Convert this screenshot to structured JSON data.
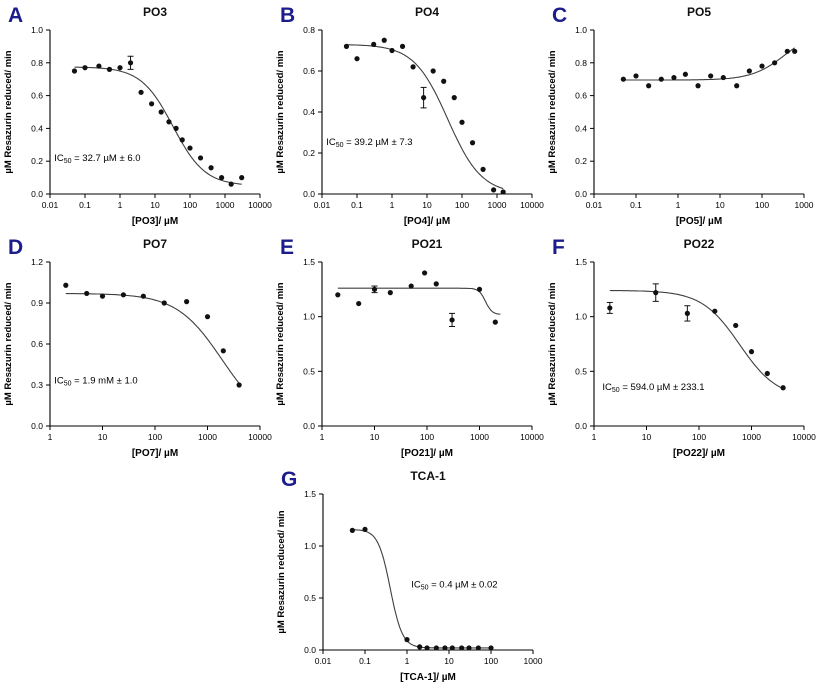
{
  "colors": {
    "background": "#ffffff",
    "panel_letter": "#1c1c8c",
    "title": "#111111",
    "axis": "#000000",
    "point": "#111111",
    "curve": "#3f3f3f"
  },
  "chart_data": [
    {
      "type": "scatter",
      "panel_letter": "A",
      "title": "PO3",
      "xlabel": "[PO3]/ µM",
      "ylabel": "µM Resazurin reduced/ min",
      "xscale": "log",
      "xlim": [
        0.01,
        10000
      ],
      "ylim": [
        0,
        1.0
      ],
      "xticks": [
        0.01,
        0.1,
        1,
        10,
        100,
        1000,
        10000
      ],
      "xtick_labels": [
        "0.01",
        "0.1",
        "1",
        "10",
        "100",
        "1000",
        "10000"
      ],
      "yticks": [
        0,
        0.2,
        0.4,
        0.6,
        0.8,
        1.0
      ],
      "ytick_labels": [
        "0.0",
        "0.2",
        "0.4",
        "0.6",
        "0.8",
        "1.0"
      ],
      "grid": false,
      "legend": null,
      "annotation": "IC50 = 32.7 µM ± 6.0",
      "annotation_pos": [
        0.02,
        0.2
      ],
      "points": [
        [
          0.05,
          0.75
        ],
        [
          0.1,
          0.77
        ],
        [
          0.25,
          0.78
        ],
        [
          0.5,
          0.76
        ],
        [
          1,
          0.77
        ],
        [
          2,
          0.8,
          0.04
        ],
        [
          4,
          0.62
        ],
        [
          8,
          0.55
        ],
        [
          15,
          0.5
        ],
        [
          25,
          0.44
        ],
        [
          40,
          0.4
        ],
        [
          60,
          0.33
        ],
        [
          100,
          0.28
        ],
        [
          200,
          0.22
        ],
        [
          400,
          0.16
        ],
        [
          800,
          0.1
        ],
        [
          1500,
          0.06
        ],
        [
          3000,
          0.1
        ]
      ],
      "fit": {
        "model": "logistic4",
        "top": 0.775,
        "bottom": 0.05,
        "ec50": 32.7,
        "hill": 0.95,
        "xrange": [
          0.05,
          3000
        ]
      }
    },
    {
      "type": "scatter",
      "panel_letter": "B",
      "title": "PO4",
      "xlabel": "[PO4]/ µM",
      "ylabel": "µM Resazurin reduced/ min",
      "xscale": "log",
      "xlim": [
        0.01,
        10000
      ],
      "ylim": [
        0,
        0.8
      ],
      "xticks": [
        0.01,
        0.1,
        1,
        10,
        100,
        1000,
        10000
      ],
      "xtick_labels": [
        "0.01",
        "0.1",
        "1",
        "10",
        "100",
        "1000",
        "10000"
      ],
      "yticks": [
        0,
        0.2,
        0.4,
        0.6,
        0.8
      ],
      "ytick_labels": [
        "0.0",
        "0.2",
        "0.4",
        "0.6",
        "0.8"
      ],
      "grid": false,
      "legend": null,
      "annotation": "IC50 = 39.2 µM ± 7.3",
      "annotation_pos": [
        0.02,
        0.3
      ],
      "points": [
        [
          0.05,
          0.72
        ],
        [
          0.1,
          0.66
        ],
        [
          0.3,
          0.73
        ],
        [
          0.6,
          0.75
        ],
        [
          1,
          0.7
        ],
        [
          2,
          0.72
        ],
        [
          4,
          0.62
        ],
        [
          8,
          0.47,
          0.05
        ],
        [
          15,
          0.6
        ],
        [
          30,
          0.55
        ],
        [
          60,
          0.47
        ],
        [
          100,
          0.35
        ],
        [
          200,
          0.25
        ],
        [
          400,
          0.12
        ],
        [
          800,
          0.02
        ],
        [
          1500,
          0.01
        ]
      ],
      "fit": {
        "model": "logistic4",
        "top": 0.73,
        "bottom": 0.0,
        "ec50": 39.2,
        "hill": 0.9,
        "xrange": [
          0.05,
          1500
        ]
      }
    },
    {
      "type": "scatter",
      "panel_letter": "C",
      "title": "PO5",
      "xlabel": "[PO5]/ µM",
      "ylabel": "µM Resazurin reduced/ min",
      "xscale": "log",
      "xlim": [
        0.01,
        1000
      ],
      "ylim": [
        0,
        1.0
      ],
      "xticks": [
        0.01,
        0.1,
        1,
        10,
        100,
        1000
      ],
      "xtick_labels": [
        "0.01",
        "0.1",
        "1",
        "10",
        "100",
        "1000"
      ],
      "yticks": [
        0,
        0.2,
        0.4,
        0.6,
        0.8,
        1.0
      ],
      "ytick_labels": [
        "0.0",
        "0.2",
        "0.4",
        "0.6",
        "0.8",
        "1.0"
      ],
      "grid": false,
      "legend": null,
      "annotation": null,
      "annotation_pos": null,
      "points": [
        [
          0.05,
          0.7
        ],
        [
          0.1,
          0.72
        ],
        [
          0.2,
          0.66
        ],
        [
          0.4,
          0.7
        ],
        [
          0.8,
          0.71
        ],
        [
          1.5,
          0.73
        ],
        [
          3,
          0.66
        ],
        [
          6,
          0.72
        ],
        [
          12,
          0.71
        ],
        [
          25,
          0.66
        ],
        [
          50,
          0.75
        ],
        [
          100,
          0.78
        ],
        [
          200,
          0.8
        ],
        [
          400,
          0.87
        ],
        [
          600,
          0.87
        ]
      ],
      "fit": {
        "model": "logistic4",
        "top": 1.0,
        "bottom": 0.695,
        "ec50": 350,
        "hill": -1.1,
        "xrange": [
          0.05,
          600
        ]
      }
    },
    {
      "type": "scatter",
      "panel_letter": "D",
      "title": "PO7",
      "xlabel": "[PO7]/ µM",
      "ylabel": "µM Resazurin reduced/ min",
      "xscale": "log",
      "xlim": [
        1,
        10000
      ],
      "ylim": [
        0,
        1.2
      ],
      "xticks": [
        1,
        10,
        100,
        1000,
        10000
      ],
      "xtick_labels": [
        "1",
        "10",
        "100",
        "1000",
        "10000"
      ],
      "yticks": [
        0,
        0.3,
        0.6,
        0.9,
        1.2
      ],
      "ytick_labels": [
        "0.0",
        "0.3",
        "0.6",
        "0.9",
        "1.2"
      ],
      "grid": false,
      "legend": null,
      "annotation": "IC50 = 1.9 mM ± 1.0",
      "annotation_pos": [
        0.02,
        0.26
      ],
      "points": [
        [
          2,
          1.03
        ],
        [
          5,
          0.97
        ],
        [
          10,
          0.95
        ],
        [
          25,
          0.96
        ],
        [
          60,
          0.95
        ],
        [
          150,
          0.9
        ],
        [
          400,
          0.91
        ],
        [
          1000,
          0.8
        ],
        [
          2000,
          0.55
        ],
        [
          4000,
          0.3
        ]
      ],
      "fit": {
        "model": "logistic4",
        "top": 0.97,
        "bottom": 0.0,
        "ec50": 1900,
        "hill": 1.0,
        "xrange": [
          2,
          4000
        ]
      }
    },
    {
      "type": "scatter",
      "panel_letter": "E",
      "title": "PO21",
      "xlabel": "[PO21]/ µM",
      "ylabel": "µM Resazurin reduced/ min",
      "xscale": "log",
      "xlim": [
        1,
        10000
      ],
      "ylim": [
        0,
        1.5
      ],
      "xticks": [
        1,
        10,
        100,
        1000,
        10000
      ],
      "xtick_labels": [
        "1",
        "10",
        "100",
        "1000",
        "10000"
      ],
      "yticks": [
        0,
        0.5,
        1.0,
        1.5
      ],
      "ytick_labels": [
        "0.0",
        "0.5",
        "1.0",
        "1.5"
      ],
      "grid": false,
      "legend": null,
      "annotation": null,
      "annotation_pos": null,
      "points": [
        [
          2,
          1.2
        ],
        [
          5,
          1.12
        ],
        [
          10,
          1.25,
          0.03
        ],
        [
          20,
          1.22
        ],
        [
          50,
          1.28
        ],
        [
          90,
          1.4
        ],
        [
          150,
          1.3
        ],
        [
          300,
          0.97,
          0.06
        ],
        [
          1000,
          1.25
        ],
        [
          2000,
          0.95
        ]
      ],
      "fit": {
        "model": "logistic4",
        "top": 1.26,
        "bottom": 1.02,
        "ec50": 1300,
        "hill": 7,
        "xrange": [
          2,
          2500
        ]
      }
    },
    {
      "type": "scatter",
      "panel_letter": "F",
      "title": "PO22",
      "xlabel": "[PO22]/ µM",
      "ylabel": "µM Resazurin reduced/ min",
      "xscale": "log",
      "xlim": [
        1,
        10000
      ],
      "ylim": [
        0,
        1.5
      ],
      "xticks": [
        1,
        10,
        100,
        1000,
        10000
      ],
      "xtick_labels": [
        "1",
        "10",
        "100",
        "1000",
        "10000"
      ],
      "yticks": [
        0,
        0.5,
        1.0,
        1.5
      ],
      "ytick_labels": [
        "0.0",
        "0.5",
        "1.0",
        "1.5"
      ],
      "grid": false,
      "legend": null,
      "annotation": "IC50 = 594.0 µM ± 233.1",
      "annotation_pos": [
        0.04,
        0.22
      ],
      "points": [
        [
          2,
          1.08,
          0.05
        ],
        [
          15,
          1.22,
          0.08
        ],
        [
          60,
          1.03,
          0.07
        ],
        [
          200,
          1.05
        ],
        [
          500,
          0.92
        ],
        [
          1000,
          0.68
        ],
        [
          2000,
          0.48
        ],
        [
          4000,
          0.35
        ]
      ],
      "fit": {
        "model": "logistic4",
        "top": 1.24,
        "bottom": 0.25,
        "ec50": 594,
        "hill": 1.2,
        "xrange": [
          2,
          4000
        ]
      }
    },
    {
      "type": "scatter",
      "panel_letter": "G",
      "title": "TCA-1",
      "xlabel": "[TCA-1]/ µM",
      "ylabel": "µM Resazurin reduced/ min",
      "xscale": "log",
      "xlim": [
        0.01,
        1000
      ],
      "ylim": [
        0,
        1.5
      ],
      "xticks": [
        0.01,
        0.1,
        1,
        10,
        100,
        1000
      ],
      "xtick_labels": [
        "0.01",
        "0.1",
        "1",
        "10",
        "100",
        "1000"
      ],
      "yticks": [
        0,
        0.5,
        1.0,
        1.5
      ],
      "ytick_labels": [
        "0.0",
        "0.5",
        "1.0",
        "1.5"
      ],
      "grid": false,
      "legend": null,
      "annotation": "IC50 = 0.4 µM ± 0.02",
      "annotation_pos": [
        0.42,
        0.4
      ],
      "points": [
        [
          0.05,
          1.15
        ],
        [
          0.1,
          1.16
        ],
        [
          1,
          0.1
        ],
        [
          2,
          0.03
        ],
        [
          3,
          0.02
        ],
        [
          5,
          0.02
        ],
        [
          8,
          0.02
        ],
        [
          12,
          0.02
        ],
        [
          20,
          0.02
        ],
        [
          30,
          0.02
        ],
        [
          50,
          0.02
        ],
        [
          100,
          0.02
        ]
      ],
      "fit": {
        "model": "logistic4",
        "top": 1.16,
        "bottom": 0.02,
        "ec50": 0.4,
        "hill": 3,
        "xrange": [
          0.05,
          100
        ]
      }
    }
  ]
}
